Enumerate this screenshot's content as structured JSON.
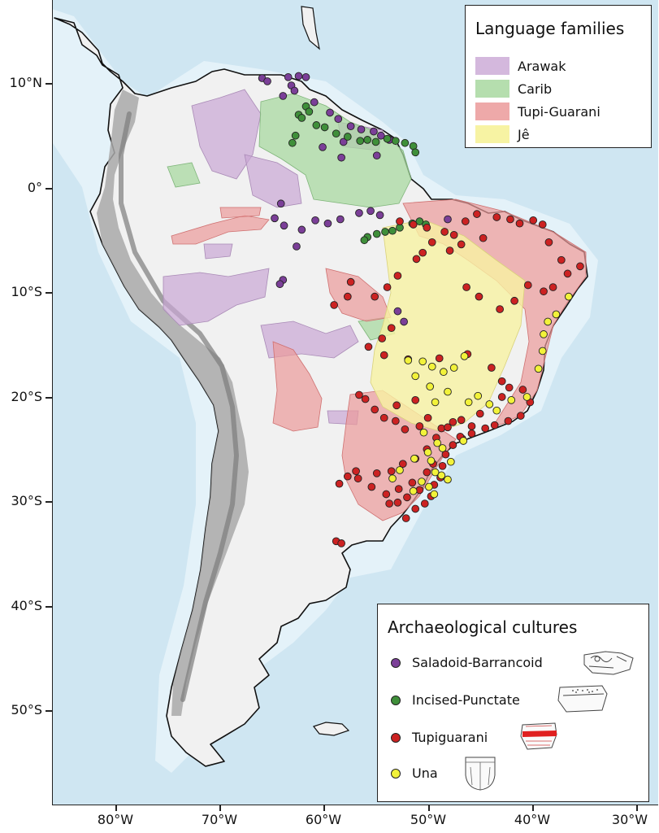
{
  "axes": {
    "lat_ticks": [
      {
        "value": 10,
        "label": "10°N"
      },
      {
        "value": 0,
        "label": "0°"
      },
      {
        "value": -10,
        "label": "10°S"
      },
      {
        "value": -20,
        "label": "20°S"
      },
      {
        "value": -30,
        "label": "30°S"
      },
      {
        "value": -40,
        "label": "40°S"
      },
      {
        "value": -50,
        "label": "50°S"
      }
    ],
    "lon_ticks": [
      {
        "value": -80,
        "label": "80°W"
      },
      {
        "value": -70,
        "label": "70°W"
      },
      {
        "value": -60,
        "label": "60°W"
      },
      {
        "value": -50,
        "label": "50°W"
      },
      {
        "value": -40,
        "label": "40°W"
      },
      {
        "value": -30,
        "label": "30°W"
      }
    ]
  },
  "legend_language": {
    "title": "Language families",
    "items": [
      {
        "label": "Arawak",
        "color": "#c9a6d4"
      },
      {
        "label": "Carib",
        "color": "#a8d8a0"
      },
      {
        "label": "Tupi-Guarani",
        "color": "#eb9a9a"
      },
      {
        "label": "Jê",
        "color": "#f7f3a3"
      }
    ]
  },
  "legend_archaeology": {
    "title": "Archaeological cultures",
    "items": [
      {
        "label": "Saladoid-Barrancoid",
        "color": "#7b3f98",
        "icon": "saladoid-sherd-icon"
      },
      {
        "label": "Incised-Punctate",
        "color": "#3f8f3a",
        "icon": "incised-sherd-icon"
      },
      {
        "label": "Tupiguarani",
        "color": "#cc2222",
        "icon": "tupiguarani-sherd-icon"
      },
      {
        "label": "Una",
        "color": "#f2f23a",
        "icon": "una-vessel-icon"
      }
    ]
  },
  "map_style": {
    "ocean": "#cfe6f2",
    "shelf": "#e4f2f9",
    "land": "#f1f1f1",
    "andes": "#9a9a9a",
    "coast": "#111111"
  },
  "sites": {
    "saladoid": [
      [
        -66,
        10.5
      ],
      [
        -63.5,
        10.6
      ],
      [
        -62.5,
        10.7
      ],
      [
        -61.8,
        10.6
      ],
      [
        -63.2,
        9.8
      ],
      [
        -65.5,
        10.2
      ],
      [
        -62.9,
        9.3
      ],
      [
        -64,
        8.8
      ],
      [
        -61,
        8.2
      ],
      [
        -59.5,
        7.2
      ],
      [
        -58.7,
        6.6
      ],
      [
        -57.5,
        5.9
      ],
      [
        -56.5,
        5.6
      ],
      [
        -55.3,
        5.4
      ],
      [
        -54.6,
        5.0
      ],
      [
        -53.8,
        4.6
      ],
      [
        -58.2,
        4.4
      ],
      [
        -60.2,
        3.9
      ],
      [
        -58.4,
        2.9
      ],
      [
        -55.0,
        3.1
      ],
      [
        -64.2,
        -1.5
      ],
      [
        -60.9,
        -3.1
      ],
      [
        -59.7,
        -3.4
      ],
      [
        -58.5,
        -3.0
      ],
      [
        -56.7,
        -2.4
      ],
      [
        -55.6,
        -2.2
      ],
      [
        -54.7,
        -2.6
      ],
      [
        -64.8,
        -2.9
      ],
      [
        -63.9,
        -3.6
      ],
      [
        -62.2,
        -4.0
      ],
      [
        -62.7,
        -5.6
      ],
      [
        -64.0,
        -8.8
      ],
      [
        -64.3,
        -9.2
      ],
      [
        -53.0,
        -11.8
      ],
      [
        -52.4,
        -12.8
      ],
      [
        -48.2,
        -3.0
      ]
    ],
    "incised": [
      [
        -61.8,
        7.8
      ],
      [
        -62.5,
        7.0
      ],
      [
        -61.5,
        7.3
      ],
      [
        -62.2,
        6.7
      ],
      [
        -60.8,
        6.0
      ],
      [
        -60.0,
        5.8
      ],
      [
        -58.9,
        5.2
      ],
      [
        -57.8,
        4.9
      ],
      [
        -56.6,
        4.5
      ],
      [
        -55.9,
        4.6
      ],
      [
        -55.1,
        4.4
      ],
      [
        -54.0,
        4.7
      ],
      [
        -53.2,
        4.5
      ],
      [
        -52.3,
        4.3
      ],
      [
        -51.5,
        4.0
      ],
      [
        -51.3,
        3.4
      ],
      [
        -62.8,
        5.0
      ],
      [
        -63.1,
        4.3
      ],
      [
        -55.9,
        -4.7
      ],
      [
        -55.0,
        -4.4
      ],
      [
        -54.2,
        -4.2
      ],
      [
        -53.5,
        -4.1
      ],
      [
        -52.8,
        -3.8
      ],
      [
        -51.6,
        -3.4
      ],
      [
        -50.9,
        -3.2
      ],
      [
        -50.3,
        -3.5
      ],
      [
        -56.2,
        -5.0
      ]
    ],
    "tupiguarani": [
      [
        -52.8,
        -3.2
      ],
      [
        -51.5,
        -3.5
      ],
      [
        -50.2,
        -3.8
      ],
      [
        -48.5,
        -4.2
      ],
      [
        -47.6,
        -4.5
      ],
      [
        -46.9,
        -5.4
      ],
      [
        -48.0,
        -6.0
      ],
      [
        -46.5,
        -3.2
      ],
      [
        -45.4,
        -2.5
      ],
      [
        -44.8,
        -4.8
      ],
      [
        -43.5,
        -2.8
      ],
      [
        -42.2,
        -3.0
      ],
      [
        -41.3,
        -3.4
      ],
      [
        -40.0,
        -3.1
      ],
      [
        -39.1,
        -3.5
      ],
      [
        -38.5,
        -5.2
      ],
      [
        -37.3,
        -6.9
      ],
      [
        -35.5,
        -7.5
      ],
      [
        -36.7,
        -8.2
      ],
      [
        -38.1,
        -9.5
      ],
      [
        -39.0,
        -9.9
      ],
      [
        -40.5,
        -9.3
      ],
      [
        -41.8,
        -10.8
      ],
      [
        -43.2,
        -11.6
      ],
      [
        -45.2,
        -10.4
      ],
      [
        -46.4,
        -9.5
      ],
      [
        -49.7,
        -5.2
      ],
      [
        -50.6,
        -6.2
      ],
      [
        -51.2,
        -6.8
      ],
      [
        -53.0,
        -8.4
      ],
      [
        -54.0,
        -9.5
      ],
      [
        -55.2,
        -10.4
      ],
      [
        -57.5,
        -9.0
      ],
      [
        -57.8,
        -10.4
      ],
      [
        -59.1,
        -11.2
      ],
      [
        -53.6,
        -13.4
      ],
      [
        -54.5,
        -14.4
      ],
      [
        -55.8,
        -15.2
      ],
      [
        -54.3,
        -16.0
      ],
      [
        -52.0,
        -16.4
      ],
      [
        -49.0,
        -16.3
      ],
      [
        -46.3,
        -15.9
      ],
      [
        -44.0,
        -17.2
      ],
      [
        -43.0,
        -18.5
      ],
      [
        -42.3,
        -19.1
      ],
      [
        -41.0,
        -19.3
      ],
      [
        -40.3,
        -20.5
      ],
      [
        -41.2,
        -21.8
      ],
      [
        -42.4,
        -22.3
      ],
      [
        -43.7,
        -22.7
      ],
      [
        -44.6,
        -23.0
      ],
      [
        -45.9,
        -23.5
      ],
      [
        -46.8,
        -24.0
      ],
      [
        -47.7,
        -24.6
      ],
      [
        -48.4,
        -25.5
      ],
      [
        -48.7,
        -26.6
      ],
      [
        -48.9,
        -27.7
      ],
      [
        -49.5,
        -28.4
      ],
      [
        -49.8,
        -29.5
      ],
      [
        -50.4,
        -30.2
      ],
      [
        -51.3,
        -30.7
      ],
      [
        -52.2,
        -31.6
      ],
      [
        -53.0,
        -30.1
      ],
      [
        -54.1,
        -29.3
      ],
      [
        -55.5,
        -28.6
      ],
      [
        -56.8,
        -27.8
      ],
      [
        -57.8,
        -27.6
      ],
      [
        -58.6,
        -28.3
      ],
      [
        -57.0,
        -27.1
      ],
      [
        -55.0,
        -27.3
      ],
      [
        -53.6,
        -27.1
      ],
      [
        -52.5,
        -26.4
      ],
      [
        -51.3,
        -25.9
      ],
      [
        -50.2,
        -25.0
      ],
      [
        -49.3,
        -23.9
      ],
      [
        -50.9,
        -22.8
      ],
      [
        -52.3,
        -23.1
      ],
      [
        -53.2,
        -22.3
      ],
      [
        -54.3,
        -22.0
      ],
      [
        -55.2,
        -21.2
      ],
      [
        -56.1,
        -20.2
      ],
      [
        -56.7,
        -19.8
      ],
      [
        -58.9,
        -33.8
      ],
      [
        -58.4,
        -34.0
      ],
      [
        -53.1,
        -20.8
      ],
      [
        -51.3,
        -20.3
      ],
      [
        -50.1,
        -22.0
      ],
      [
        -48.8,
        -23.0
      ],
      [
        -47.7,
        -22.4
      ],
      [
        -46.9,
        -22.2
      ],
      [
        -45.9,
        -22.8
      ],
      [
        -45.1,
        -21.6
      ],
      [
        -43.0,
        -20.0
      ],
      [
        -52.9,
        -28.8
      ],
      [
        -52.1,
        -29.6
      ],
      [
        -51.6,
        -28.2
      ],
      [
        -53.8,
        -30.2
      ],
      [
        -50.9,
        -28.9
      ],
      [
        -50.2,
        -27.2
      ],
      [
        -49.6,
        -26.4
      ],
      [
        -48.2,
        -22.9
      ],
      [
        -47.0,
        -23.8
      ]
    ],
    "una": [
      [
        -52.0,
        -16.5
      ],
      [
        -50.6,
        -16.6
      ],
      [
        -49.7,
        -17.1
      ],
      [
        -48.6,
        -17.6
      ],
      [
        -47.6,
        -17.2
      ],
      [
        -46.6,
        -16.1
      ],
      [
        -49.9,
        -19.0
      ],
      [
        -51.3,
        -18.0
      ],
      [
        -48.2,
        -19.5
      ],
      [
        -46.2,
        -20.5
      ],
      [
        -45.3,
        -19.9
      ],
      [
        -44.2,
        -20.7
      ],
      [
        -43.5,
        -21.3
      ],
      [
        -42.1,
        -20.3
      ],
      [
        -40.6,
        -20.0
      ],
      [
        -39.5,
        -17.3
      ],
      [
        -39.1,
        -15.6
      ],
      [
        -39.0,
        -14.0
      ],
      [
        -38.6,
        -12.8
      ],
      [
        -37.8,
        -12.1
      ],
      [
        -36.6,
        -10.4
      ],
      [
        -49.4,
        -20.5
      ],
      [
        -50.5,
        -23.4
      ],
      [
        -49.2,
        -24.4
      ],
      [
        -48.7,
        -24.9
      ],
      [
        -50.1,
        -25.3
      ],
      [
        -51.4,
        -25.9
      ],
      [
        -49.8,
        -26.1
      ],
      [
        -49.4,
        -27.2
      ],
      [
        -48.8,
        -27.5
      ],
      [
        -50.7,
        -28.1
      ],
      [
        -50.0,
        -28.6
      ],
      [
        -49.5,
        -29.3
      ],
      [
        -51.5,
        -29.0
      ],
      [
        -52.8,
        -27.0
      ],
      [
        -53.5,
        -27.8
      ],
      [
        -48.2,
        -27.9
      ],
      [
        -47.9,
        -26.2
      ],
      [
        -46.7,
        -24.2
      ]
    ]
  }
}
